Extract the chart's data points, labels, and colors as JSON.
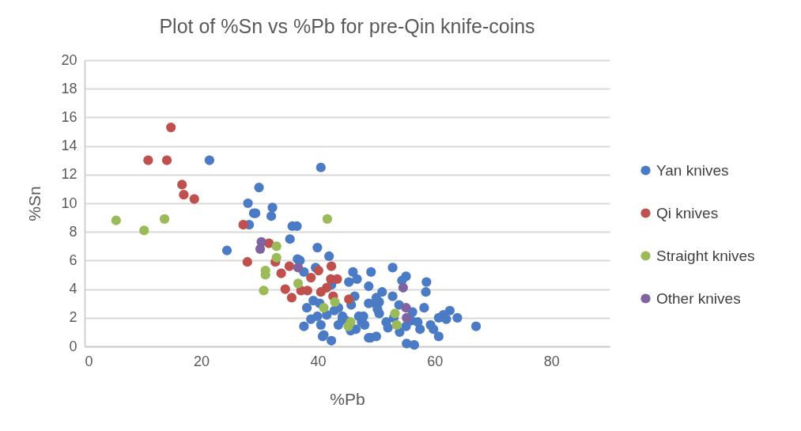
{
  "chart_data": {
    "type": "scatter",
    "title": "Plot of %Sn vs %Pb for pre-Qin knife-coins",
    "xlabel": "%Pb",
    "ylabel": "%Sn",
    "xlim": [
      0,
      90
    ],
    "xticks": [
      0,
      20,
      40,
      60,
      80
    ],
    "ylim": [
      0,
      20
    ],
    "yticks": [
      0,
      2,
      4,
      6,
      8,
      10,
      12,
      14,
      16,
      18,
      20
    ],
    "grid": "y",
    "legend": "right",
    "marker": "circle",
    "series": [
      {
        "name": "Yan knives",
        "color": "#4a7bc4",
        "x": [
          21.4,
          40.5,
          29.9,
          28,
          29,
          29.3,
          32.2,
          32,
          35.6,
          36.4,
          35.2,
          24.4,
          39.9,
          41.9,
          36.9,
          36.5,
          28.2,
          39.6,
          46,
          49.1,
          48.7,
          46.7,
          37.6,
          52.8,
          55.1,
          54.4,
          51,
          58.5,
          52.8,
          49.8,
          58.2,
          62.6,
          63.9,
          60.7,
          67.1,
          60.7,
          55.2,
          56.5,
          49,
          50,
          40.8,
          42.3,
          45.6,
          43.5,
          44.2,
          45.7,
          46.3,
          39.9,
          47.8,
          50.5,
          51.7,
          55.1,
          57.1,
          59.3,
          56.2,
          53.9,
          50.5,
          38.1,
          39.2,
          37.6,
          40.5,
          41,
          43.5,
          44.2,
          47,
          48.7,
          48.7,
          50,
          45.3,
          42.3,
          40.3,
          38.8,
          58.6,
          61.5,
          57.5,
          54,
          52,
          48,
          44.8,
          42.8,
          41.5,
          53,
          56,
          59.8,
          62,
          47.5,
          50.2,
          46.5
        ],
        "values": [
          13,
          12.5,
          11.1,
          10,
          9.3,
          9.3,
          9.7,
          9.1,
          8.4,
          8.4,
          7.5,
          6.7,
          6.9,
          6.3,
          6.0,
          6.1,
          8.5,
          5.5,
          5.2,
          5.2,
          4.2,
          4.7,
          5.2,
          5.5,
          4.9,
          4.6,
          3.8,
          3.8,
          3.5,
          3.0,
          2.7,
          2.5,
          2.0,
          2.0,
          1.4,
          0.7,
          0.2,
          0.1,
          0.6,
          0.7,
          0.7,
          0.4,
          1.1,
          1.5,
          2.1,
          2.9,
          3.5,
          2.1,
          2.1,
          2.3,
          1.7,
          1.4,
          1.7,
          1.5,
          2.4,
          2.9,
          3.1,
          2.7,
          3.2,
          1.4,
          1.5,
          0.8,
          2.7,
          1.9,
          2.1,
          3.0,
          0.6,
          3.4,
          4.5,
          4.3,
          3.0,
          1.9,
          4.5,
          2.2,
          1.2,
          1.0,
          1.3,
          1.5,
          1.8,
          2.5,
          2.2,
          2.0,
          1.8,
          1.2,
          1.9,
          1.7,
          2.6,
          1.2
        ]
      },
      {
        "name": "Qi knives",
        "color": "#c0504d",
        "x": [
          14.8,
          10.9,
          14.1,
          16.7,
          17,
          18.8,
          27.2,
          27.9,
          31.6,
          32.7,
          33.7,
          35.1,
          40.1,
          42.3,
          34.4,
          35.5,
          37.1,
          38.8,
          38.2,
          40.5,
          42.2,
          43.3,
          41.5,
          45.3,
          null,
          42.6
        ],
        "values": [
          15.3,
          13,
          13,
          11.3,
          10.6,
          10.3,
          8.5,
          5.9,
          7.2,
          5.9,
          5.1,
          5.6,
          5.3,
          5.6,
          4.0,
          3.4,
          3.9,
          4.8,
          3.9,
          3.8,
          4.7,
          4.7,
          4.1,
          3.3,
          null,
          3.5
        ]
      },
      {
        "name": "Straight knives",
        "color": "#9bbb59",
        "x": [
          5.4,
          10.2,
          13.7,
          31,
          31,
          41.6,
          32.9,
          32.9,
          30.7,
          36.6,
          41,
          42.9,
          45.6,
          45.2,
          53.2,
          53.5
        ],
        "values": [
          8.8,
          8.1,
          8.9,
          5.3,
          5.0,
          8.9,
          7.0,
          6.2,
          3.9,
          4.4,
          2.7,
          3.1,
          1.7,
          1.4,
          2.3,
          1.5
        ]
      },
      {
        "name": "Other knives",
        "color": "#8064a2",
        "x": [
          30.3,
          30.1,
          36.6,
          54.6,
          55.1,
          55.2
        ],
        "values": [
          7.3,
          6.8,
          5.5,
          4.1,
          2.7,
          2.0
        ]
      }
    ]
  }
}
